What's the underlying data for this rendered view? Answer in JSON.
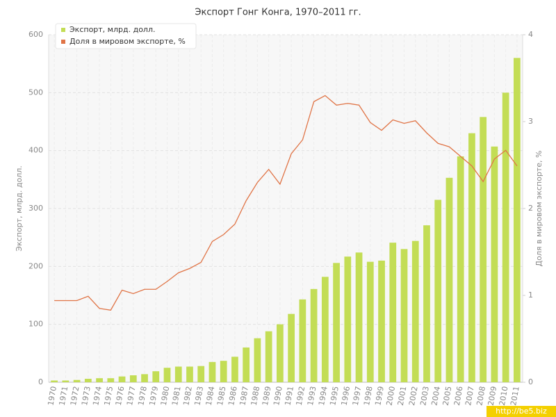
{
  "chart_data": {
    "type": "bar",
    "title": "Экспорт Гонг Конга, 1970–2011 гг.",
    "categories": [
      "1970",
      "1971",
      "1972",
      "1973",
      "1974",
      "1975",
      "1976",
      "1977",
      "1978",
      "1979",
      "1980",
      "1981",
      "1982",
      "1983",
      "1984",
      "1985",
      "1986",
      "1987",
      "1988",
      "1989",
      "1990",
      "1991",
      "1992",
      "1993",
      "1994",
      "1995",
      "1996",
      "1997",
      "1998",
      "1999",
      "2000",
      "2001",
      "2002",
      "2003",
      "2004",
      "2005",
      "2006",
      "2007",
      "2008",
      "2009",
      "2010",
      "2011"
    ],
    "series": [
      {
        "name": "Экспорт, млрд. долл.",
        "type": "bar",
        "color": "#c3dd55",
        "values": [
          3,
          3,
          4,
          6,
          7,
          7,
          10,
          12,
          14,
          19,
          25,
          27,
          27,
          28,
          35,
          37,
          44,
          60,
          76,
          88,
          100,
          118,
          143,
          161,
          182,
          206,
          217,
          224,
          208,
          210,
          241,
          230,
          244,
          271,
          315,
          353,
          390,
          430,
          458,
          407,
          500,
          560
        ]
      },
      {
        "name": "Доля в мировом экспорте, %",
        "type": "line",
        "color": "#e07446",
        "axis": "y2",
        "values": [
          0.94,
          0.94,
          0.94,
          0.99,
          0.85,
          0.83,
          1.06,
          1.02,
          1.07,
          1.07,
          1.16,
          1.26,
          1.31,
          1.38,
          1.62,
          1.7,
          1.82,
          2.09,
          2.3,
          2.45,
          2.28,
          2.63,
          2.79,
          3.23,
          3.3,
          3.19,
          3.21,
          3.19,
          2.99,
          2.9,
          3.02,
          2.98,
          3.01,
          2.87,
          2.75,
          2.71,
          2.6,
          2.49,
          2.31,
          2.57,
          2.67,
          2.49
        ]
      }
    ],
    "ylabel": "Экспорт, млрд. долл.",
    "y2label": "Доля в мировом экспорте, %",
    "ylim": [
      0,
      600
    ],
    "yticks": [
      0,
      100,
      200,
      300,
      400,
      500,
      600
    ],
    "y2lim": [
      0,
      4
    ],
    "y2ticks": [
      0,
      1,
      2,
      3,
      4
    ],
    "grid": true,
    "legend": "top-left"
  },
  "watermark": "http://be5.biz"
}
